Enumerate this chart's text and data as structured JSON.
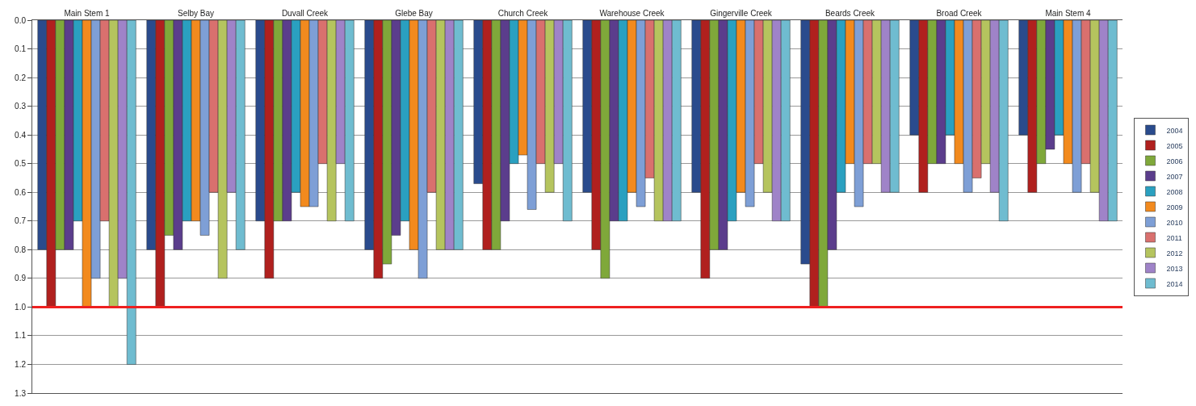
{
  "chart_data": {
    "type": "bar",
    "categories": [
      "Main Stem 1",
      "Selby Bay",
      "Duvall Creek",
      "Glebe Bay",
      "Church Creek",
      "Warehouse Creek",
      "Gingerville Creek",
      "Beards Creek",
      "Broad Creek",
      "Main Stem 4"
    ],
    "series": [
      {
        "name": "2004",
        "color": "#2a4b8d",
        "values": [
          0.8,
          0.8,
          0.7,
          0.8,
          0.57,
          0.6,
          0.6,
          0.85,
          0.4,
          0.4
        ]
      },
      {
        "name": "2005",
        "color": "#b0201e",
        "values": [
          1.0,
          1.0,
          0.9,
          0.9,
          0.8,
          0.8,
          0.9,
          1.0,
          0.6,
          0.6
        ]
      },
      {
        "name": "2006",
        "color": "#7fa83a",
        "values": [
          0.8,
          0.75,
          0.7,
          0.85,
          0.8,
          0.9,
          0.8,
          1.0,
          0.5,
          0.5
        ]
      },
      {
        "name": "2007",
        "color": "#5b3d8c",
        "values": [
          0.8,
          0.8,
          0.7,
          0.75,
          0.7,
          0.7,
          0.8,
          0.8,
          0.5,
          0.45
        ]
      },
      {
        "name": "2008",
        "color": "#2aa0c0",
        "values": [
          0.7,
          0.7,
          0.6,
          0.7,
          0.5,
          0.7,
          0.7,
          0.6,
          0.4,
          0.4
        ]
      },
      {
        "name": "2009",
        "color": "#f28a1e",
        "values": [
          1.0,
          0.7,
          0.65,
          0.8,
          0.47,
          0.6,
          0.6,
          0.5,
          0.5,
          0.5
        ]
      },
      {
        "name": "2010",
        "color": "#7e9fd6",
        "values": [
          0.9,
          0.75,
          0.65,
          0.9,
          0.66,
          0.65,
          0.65,
          0.65,
          0.6,
          0.6
        ]
      },
      {
        "name": "2011",
        "color": "#d9706e",
        "values": [
          0.7,
          0.6,
          0.5,
          0.6,
          0.5,
          0.55,
          0.5,
          0.5,
          0.55,
          0.5
        ]
      },
      {
        "name": "2012",
        "color": "#b5c45e",
        "values": [
          1.0,
          0.9,
          0.7,
          0.8,
          0.6,
          0.7,
          0.6,
          0.5,
          0.5,
          0.6
        ]
      },
      {
        "name": "2013",
        "color": "#9f83c8",
        "values": [
          0.9,
          0.6,
          0.5,
          0.8,
          0.5,
          0.7,
          0.7,
          0.6,
          0.6,
          0.7
        ]
      },
      {
        "name": "2014",
        "color": "#6fbcd0",
        "values": [
          1.2,
          0.8,
          0.7,
          0.8,
          0.7,
          0.7,
          0.7,
          0.6,
          0.7,
          0.7
        ]
      }
    ],
    "ylim": [
      1.3,
      0
    ],
    "yticks": [
      {
        "value": 0,
        "label": "0.0"
      },
      {
        "value": 0.1,
        "label": "0.1"
      },
      {
        "value": 0.2,
        "label": "0.2"
      },
      {
        "value": 0.3,
        "label": "0.3"
      },
      {
        "value": 0.4,
        "label": "0.4"
      },
      {
        "value": 0.5,
        "label": "0.5"
      },
      {
        "value": 0.6,
        "label": "0.6"
      },
      {
        "value": 0.7,
        "label": "0.7"
      },
      {
        "value": 0.8,
        "label": "0.8"
      },
      {
        "value": 0.9,
        "label": "0.9"
      },
      {
        "value": 1.0,
        "label": "1.0"
      },
      {
        "value": 1.1,
        "label": "1.1"
      },
      {
        "value": 1.2,
        "label": "1.2"
      },
      {
        "value": 1.3,
        "label": "1.3"
      }
    ],
    "ref_lines": [
      {
        "axis": "y",
        "value": 1.0,
        "color": "#ee2020"
      }
    ],
    "grid": "y",
    "legend": "right"
  }
}
